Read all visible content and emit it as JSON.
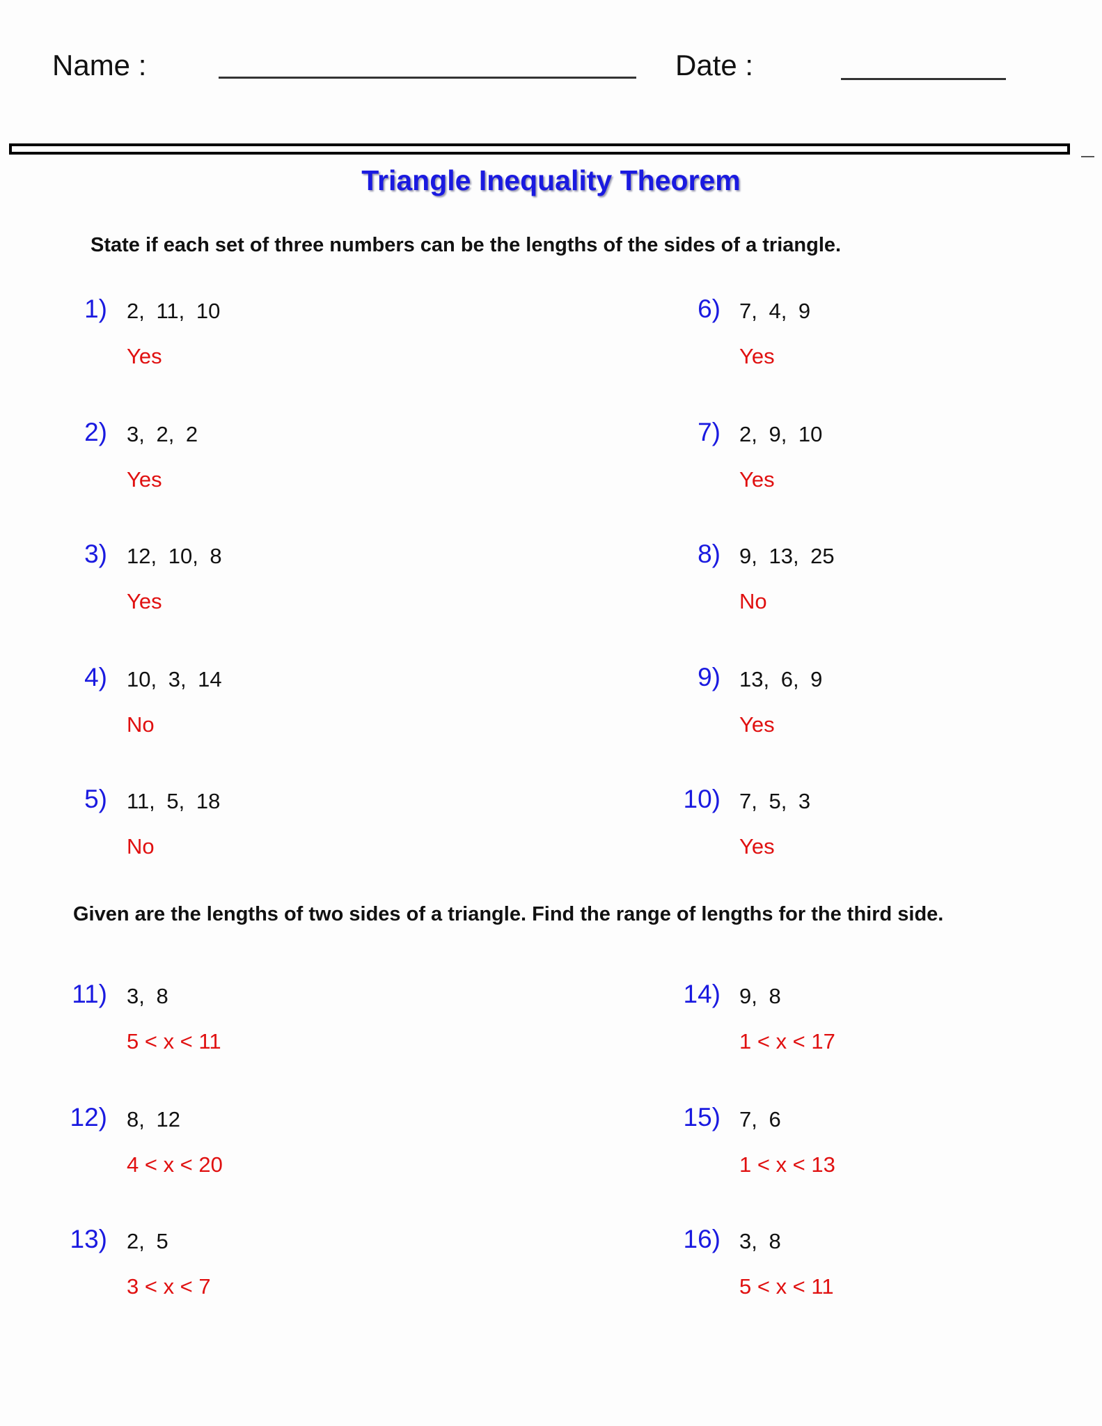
{
  "header": {
    "name_label": "Name :",
    "date_label": "Date :"
  },
  "title": "Triangle Inequality Theorem",
  "section1": {
    "instruction": "State if each set of three numbers can be the lengths of the sides of a triangle.",
    "problems": [
      {
        "number": "1)",
        "values": "2, 11, 10",
        "answer": "Yes"
      },
      {
        "number": "2)",
        "values": "3, 2, 2",
        "answer": "Yes"
      },
      {
        "number": "3)",
        "values": "12, 10, 8",
        "answer": "Yes"
      },
      {
        "number": "4)",
        "values": "10, 3, 14",
        "answer": "No"
      },
      {
        "number": "5)",
        "values": "11, 5, 18",
        "answer": "No"
      },
      {
        "number": "6)",
        "values": "7, 4, 9",
        "answer": "Yes"
      },
      {
        "number": "7)",
        "values": "2, 9, 10",
        "answer": "Yes"
      },
      {
        "number": "8)",
        "values": "9, 13, 25",
        "answer": "No"
      },
      {
        "number": "9)",
        "values": "13, 6, 9",
        "answer": "Yes"
      },
      {
        "number": "10)",
        "values": "7, 5, 3",
        "answer": "Yes"
      }
    ]
  },
  "section2": {
    "instruction": "Given are the lengths of two sides of a triangle. Find the range of lengths for the third side.",
    "problems": [
      {
        "number": "11)",
        "values": "3, 8",
        "answer": "5 < x < 11"
      },
      {
        "number": "12)",
        "values": "8, 12",
        "answer": "4 < x < 20"
      },
      {
        "number": "13)",
        "values": "2, 5",
        "answer": "3 < x < 7"
      },
      {
        "number": "14)",
        "values": "9, 8",
        "answer": "1 < x < 17"
      },
      {
        "number": "15)",
        "values": "7, 6",
        "answer": "1 < x < 13"
      },
      {
        "number": "16)",
        "values": "3, 8",
        "answer": "5 < x < 11"
      }
    ]
  },
  "colors": {
    "number": "#1a1ae0",
    "answer": "#e01010",
    "title": "#1a1ae0"
  }
}
